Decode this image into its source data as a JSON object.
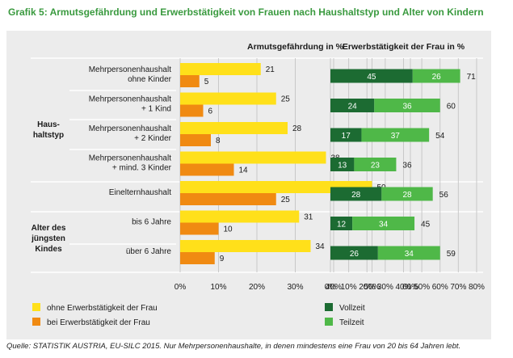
{
  "title": "Grafik 5: Armutsgefährdung und Erwerbstätigkeit von Frauen nach Haushaltstyp und Alter von Kindern",
  "source": "Quelle: STATISTIK AUSTRIA, EU-SILC 2015. Nur Mehrpersonenhaushalte, in denen mindestens eine Frau von 20 bis 64 Jahren lebt.",
  "groups": [
    {
      "label": [
        "Haus-",
        "haltstyp"
      ]
    },
    {
      "label": [
        "Alter des",
        "jüngsten",
        "Kindes"
      ]
    }
  ],
  "colors": {
    "ohne": "#ffe01a",
    "bei": "#f08a12",
    "vollzeit": "#1c6b32",
    "teilzeit": "#4fb848",
    "title": "#3a9a3f",
    "panel": "#ececec"
  },
  "chart_data": [
    {
      "type": "bar",
      "orientation": "horizontal",
      "title": "Armutsgefährdung in %",
      "categories": [
        [
          "Mehrpersonenhaushalt",
          "ohne Kinder"
        ],
        [
          "Mehrpersonenhaushalt",
          "+ 1 Kind"
        ],
        [
          "Mehrpersonenhaushalt",
          "+ 2 Kinder"
        ],
        [
          "Mehrpersonenhaushalt",
          "+ mind. 3 Kinder"
        ],
        [
          "Einelternhaushalt"
        ],
        [
          "bis 6 Jahre"
        ],
        [
          "über 6 Jahre"
        ]
      ],
      "series": [
        {
          "name": "ohne Erwerbstätigkeit der Frau",
          "values": [
            21,
            25,
            28,
            38,
            50,
            31,
            34
          ]
        },
        {
          "name": "bei Erwerbstätigkeit der Frau",
          "values": [
            5,
            6,
            8,
            14,
            25,
            10,
            9
          ]
        }
      ],
      "xlim": [
        0,
        60
      ],
      "ticks": [
        "0%",
        "10%",
        "20%",
        "30%",
        "40%",
        "50%",
        "60%"
      ]
    },
    {
      "type": "bar",
      "orientation": "horizontal",
      "stacked": true,
      "title": "Erwerbstätigkeit der Frau in %",
      "series": [
        {
          "name": "Vollzeit",
          "values": [
            45,
            24,
            17,
            13,
            28,
            12,
            26
          ]
        },
        {
          "name": "Teilzeit",
          "values": [
            26,
            36,
            37,
            23,
            28,
            34,
            34
          ]
        }
      ],
      "totals": [
        71,
        60,
        54,
        36,
        56,
        45,
        59
      ],
      "xlim": [
        0,
        80
      ],
      "ticks": [
        "0%",
        "10%",
        "20%",
        "30%",
        "40%",
        "50%",
        "60%",
        "70%",
        "80%"
      ]
    }
  ]
}
